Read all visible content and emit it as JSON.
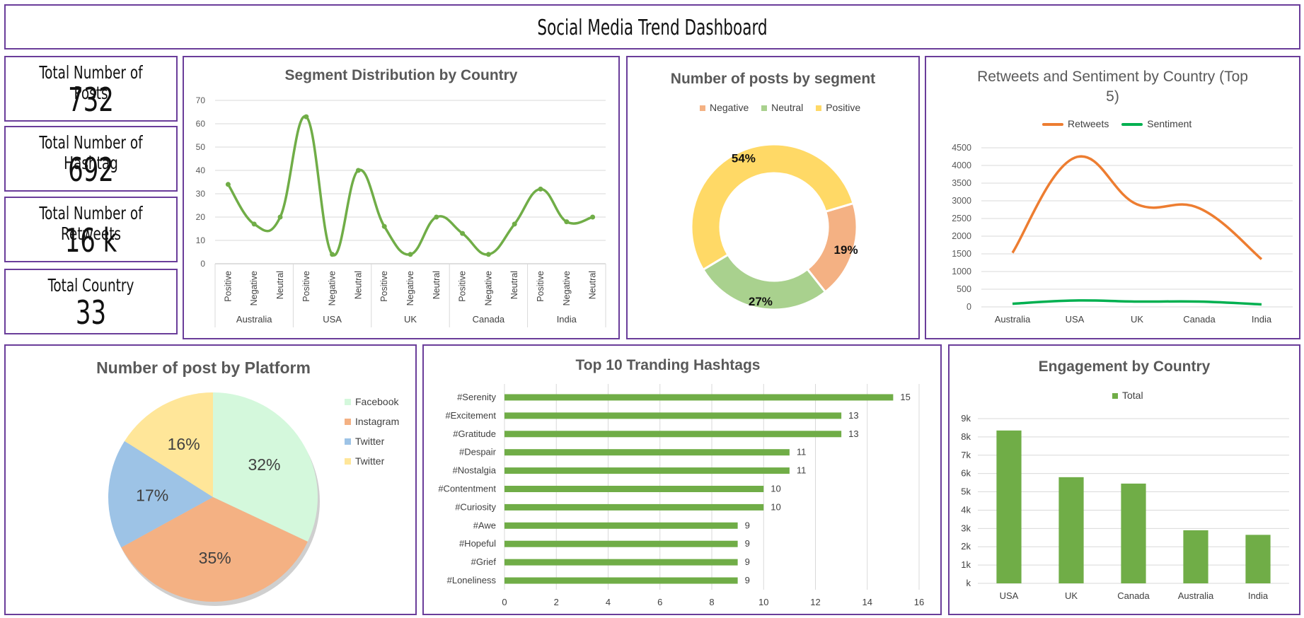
{
  "dashboard_title": "Social Media Trend Dashboard",
  "kpis": [
    {
      "label": "Total Number of Posts",
      "value": "732"
    },
    {
      "label": "Total Number of Hashtag",
      "value": "692"
    },
    {
      "label": "Total Number of Retweets",
      "value": "16 k"
    },
    {
      "label": "Total Country",
      "value": "33"
    }
  ],
  "colors": {
    "border": "#6a3d9a",
    "green": "#70ad47",
    "orange": "#ed7d31",
    "sentiment_green": "#00b050",
    "negative": "#f4b183",
    "neutral": "#a9d18e",
    "positive": "#ffd966",
    "facebook": "#d4f8dc",
    "instagram": "#f4b183",
    "twitter_blue": "#9dc3e6",
    "twitter_yellow": "#ffe699"
  },
  "chart_data": [
    {
      "id": "segment_by_country",
      "type": "line",
      "title": "Segment Distribution by Country",
      "groups": [
        "Australia",
        "USA",
        "UK",
        "Canada",
        "India"
      ],
      "subcategories": [
        "Positive",
        "Negative",
        "Neutral"
      ],
      "values": [
        34,
        17,
        20,
        63,
        4,
        40,
        16,
        4,
        20,
        13,
        4,
        17,
        32,
        18,
        20
      ],
      "ylim": [
        0,
        70
      ],
      "yticks": [
        0,
        10,
        20,
        30,
        40,
        50,
        60,
        70
      ],
      "grid": true
    },
    {
      "id": "posts_by_segment",
      "type": "pie",
      "variant": "donut",
      "title": "Number of posts by segment",
      "labels": [
        "Negative",
        "Neutral",
        "Positive"
      ],
      "values": [
        19,
        27,
        54
      ],
      "value_labels": [
        "19%",
        "27%",
        "54%"
      ],
      "legend": "top"
    },
    {
      "id": "retweets_sentiment",
      "type": "line",
      "title": "Retweets and Sentiment by Country (Top 5)",
      "title_lines": [
        "Retweets and Sentiment by Country (Top",
        "5)"
      ],
      "categories": [
        "Australia",
        "USA",
        "UK",
        "Canada",
        "India"
      ],
      "series": [
        {
          "name": "Retweets",
          "values": [
            1530,
            4220,
            2900,
            2790,
            1350
          ]
        },
        {
          "name": "Sentiment",
          "values": [
            90,
            180,
            150,
            150,
            70
          ]
        }
      ],
      "ylim": [
        0,
        4500
      ],
      "yticks": [
        0,
        500,
        1000,
        1500,
        2000,
        2500,
        3000,
        3500,
        4000,
        4500
      ],
      "legend": "top",
      "grid": true
    },
    {
      "id": "post_by_platform",
      "type": "pie",
      "title": "Number of post by Platform",
      "labels": [
        "Facebook",
        "Instagram",
        "Twitter",
        "Twitter"
      ],
      "values": [
        32,
        35,
        17,
        16
      ],
      "value_labels": [
        "32%",
        "35%",
        "17%",
        "16%"
      ],
      "legend": "right"
    },
    {
      "id": "top_hashtags",
      "type": "bar",
      "orientation": "horizontal",
      "title": "Top 10 Tranding Hashtags",
      "categories": [
        "#Serenity",
        "#Excitement",
        "#Gratitude",
        "#Despair",
        "#Nostalgia",
        "#Contentment",
        "#Curiosity",
        "#Awe",
        "#Hopeful",
        "#Grief",
        "#Loneliness"
      ],
      "values": [
        15,
        13,
        13,
        11,
        11,
        10,
        10,
        9,
        9,
        9,
        9
      ],
      "xlim": [
        0,
        16
      ],
      "xticks": [
        0,
        2,
        4,
        6,
        8,
        10,
        12,
        14,
        16
      ],
      "grid": true
    },
    {
      "id": "engagement_by_country",
      "type": "bar",
      "title": "Engagement by Country",
      "categories": [
        "USA",
        "UK",
        "Canada",
        "Australia",
        "India"
      ],
      "series": [
        {
          "name": "Total",
          "values": [
            8350,
            5800,
            5450,
            2900,
            2650
          ]
        }
      ],
      "ylim": [
        0,
        9000
      ],
      "ytick_labels": [
        "k",
        "1k",
        "2k",
        "3k",
        "4k",
        "5k",
        "6k",
        "7k",
        "8k",
        "9k"
      ],
      "legend": "top",
      "grid": true
    }
  ]
}
